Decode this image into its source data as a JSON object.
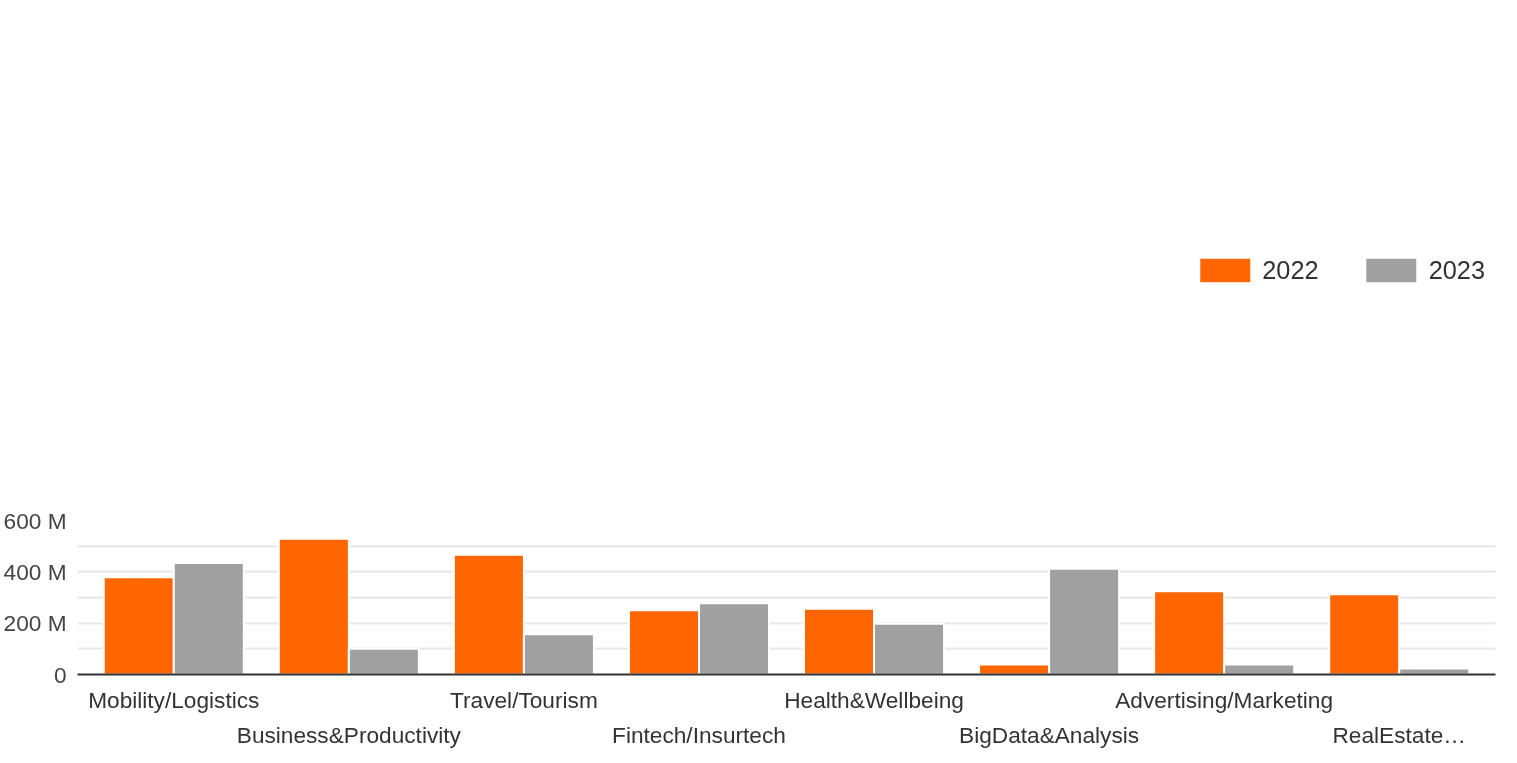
{
  "chart_data": {
    "type": "bar",
    "categories": [
      "Mobility/Logistics",
      "Business&Productivity",
      "Travel/Tourism",
      "Fintech/Insurtech",
      "Health&Wellbeing",
      "BigData&Analysis",
      "Advertising/Marketing",
      "RealEstate…"
    ],
    "series": [
      {
        "name": "2022",
        "color": "#ff6600",
        "values": [
          379,
          529,
          467,
          250,
          256,
          39,
          324,
          313
        ]
      },
      {
        "name": "2023",
        "color": "#a0a0a0",
        "values": [
          434,
          100,
          157,
          278,
          198,
          412,
          39,
          23
        ]
      }
    ],
    "ylim": [
      0,
      600
    ],
    "yticks": [
      0,
      {
        "value": 100,
        "label": null
      },
      {
        "value": 200,
        "label": "200 M"
      },
      {
        "value": 300,
        "label": null
      },
      {
        "value": 400,
        "label": "400 M"
      },
      {
        "value": 500,
        "label": null
      },
      {
        "value": 600,
        "label": "600 M"
      }
    ],
    "grid": "y",
    "legend": "top right"
  }
}
